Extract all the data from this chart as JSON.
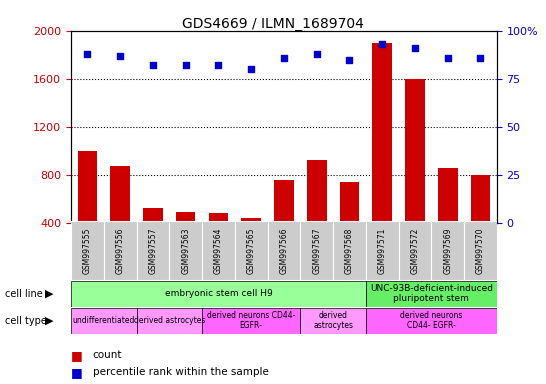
{
  "title": "GDS4669 / ILMN_1689704",
  "samples": [
    "GSM997555",
    "GSM997556",
    "GSM997557",
    "GSM997563",
    "GSM997564",
    "GSM997565",
    "GSM997566",
    "GSM997567",
    "GSM997568",
    "GSM997571",
    "GSM997572",
    "GSM997569",
    "GSM997570"
  ],
  "counts": [
    1000,
    870,
    520,
    490,
    480,
    440,
    760,
    920,
    740,
    1900,
    1600,
    860,
    800
  ],
  "percentiles": [
    88,
    87,
    82,
    82,
    82,
    80,
    86,
    88,
    85,
    93,
    91,
    86,
    86
  ],
  "ylim_left": [
    400,
    2000
  ],
  "ylim_right": [
    0,
    100
  ],
  "yticks_left": [
    400,
    800,
    1200,
    1600,
    2000
  ],
  "yticks_right": [
    0,
    25,
    50,
    75,
    100
  ],
  "bar_color": "#cc0000",
  "dot_color": "#0000cc",
  "cell_line_groups": [
    {
      "label": "embryonic stem cell H9",
      "start": 0,
      "end": 9,
      "color": "#99ff99"
    },
    {
      "label": "UNC-93B-deficient-induced\npluripotent stem",
      "start": 9,
      "end": 13,
      "color": "#66ee66"
    }
  ],
  "cell_type_groups": [
    {
      "label": "undifferentiated",
      "start": 0,
      "end": 2,
      "color": "#ff99ff"
    },
    {
      "label": "derived astrocytes",
      "start": 2,
      "end": 4,
      "color": "#ff99ff"
    },
    {
      "label": "derived neurons CD44-\nEGFR-",
      "start": 4,
      "end": 7,
      "color": "#ff66ff"
    },
    {
      "label": "derived\nastrocytes",
      "start": 7,
      "end": 9,
      "color": "#ff99ff"
    },
    {
      "label": "derived neurons\nCD44- EGFR-",
      "start": 9,
      "end": 13,
      "color": "#ff66ff"
    }
  ],
  "tick_bg_color": "#cccccc",
  "grid_color": "#000000",
  "legend_count_color": "#cc0000",
  "legend_pct_color": "#0000cc"
}
